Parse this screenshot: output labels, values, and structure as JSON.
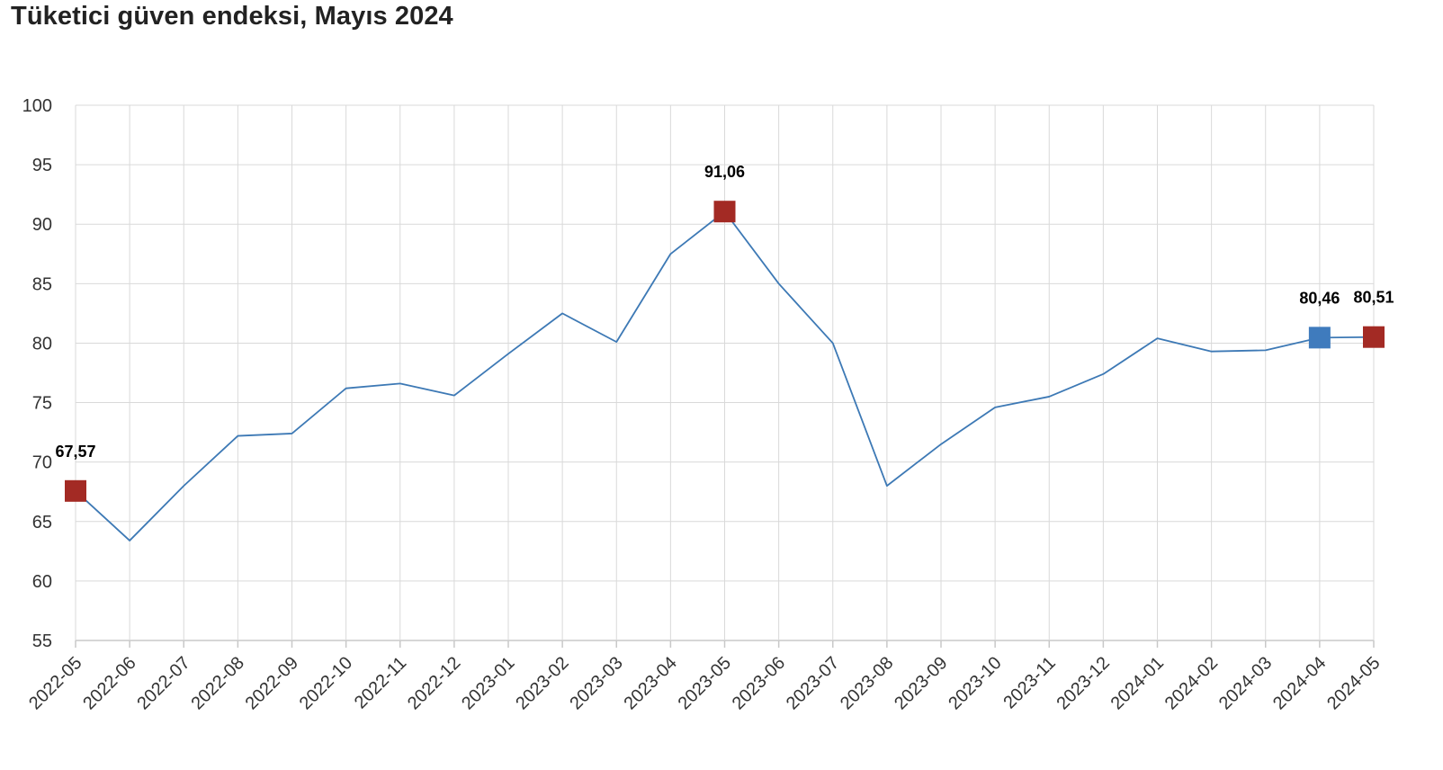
{
  "title": "Tüketici güven endeksi, Mayıs 2024",
  "colors": {
    "line": "#3d79b5",
    "marker_red": "#a32a24",
    "marker_blue": "#3f7bbd",
    "grid": "#d9d9d9",
    "text": "#333333"
  },
  "chart_data": {
    "type": "line",
    "title": "Tüketici güven endeksi, Mayıs 2024",
    "xlabel": "",
    "ylabel": "",
    "ylim": [
      55,
      100
    ],
    "yticks": [
      55,
      60,
      65,
      70,
      75,
      80,
      85,
      90,
      95,
      100
    ],
    "grid": true,
    "categories": [
      "2022-05",
      "2022-06",
      "2022-07",
      "2022-08",
      "2022-09",
      "2022-10",
      "2022-11",
      "2022-12",
      "2023-01",
      "2023-02",
      "2023-03",
      "2023-04",
      "2023-05",
      "2023-06",
      "2023-07",
      "2023-08",
      "2023-09",
      "2023-10",
      "2023-11",
      "2023-12",
      "2024-01",
      "2024-02",
      "2024-03",
      "2024-04",
      "2024-05"
    ],
    "series": [
      {
        "values": [
          67.57,
          63.4,
          68.0,
          72.2,
          72.4,
          76.2,
          76.6,
          75.6,
          79.1,
          82.5,
          80.1,
          87.5,
          91.06,
          85.0,
          80.0,
          68.0,
          71.5,
          74.6,
          75.5,
          77.4,
          80.4,
          79.3,
          79.4,
          80.46,
          80.51
        ]
      }
    ],
    "highlights": [
      {
        "index": 0,
        "label": "67,57",
        "color": "red"
      },
      {
        "index": 12,
        "label": "91,06",
        "color": "red"
      },
      {
        "index": 23,
        "label": "80,46",
        "color": "blue"
      },
      {
        "index": 24,
        "label": "80,51",
        "color": "red"
      }
    ]
  }
}
